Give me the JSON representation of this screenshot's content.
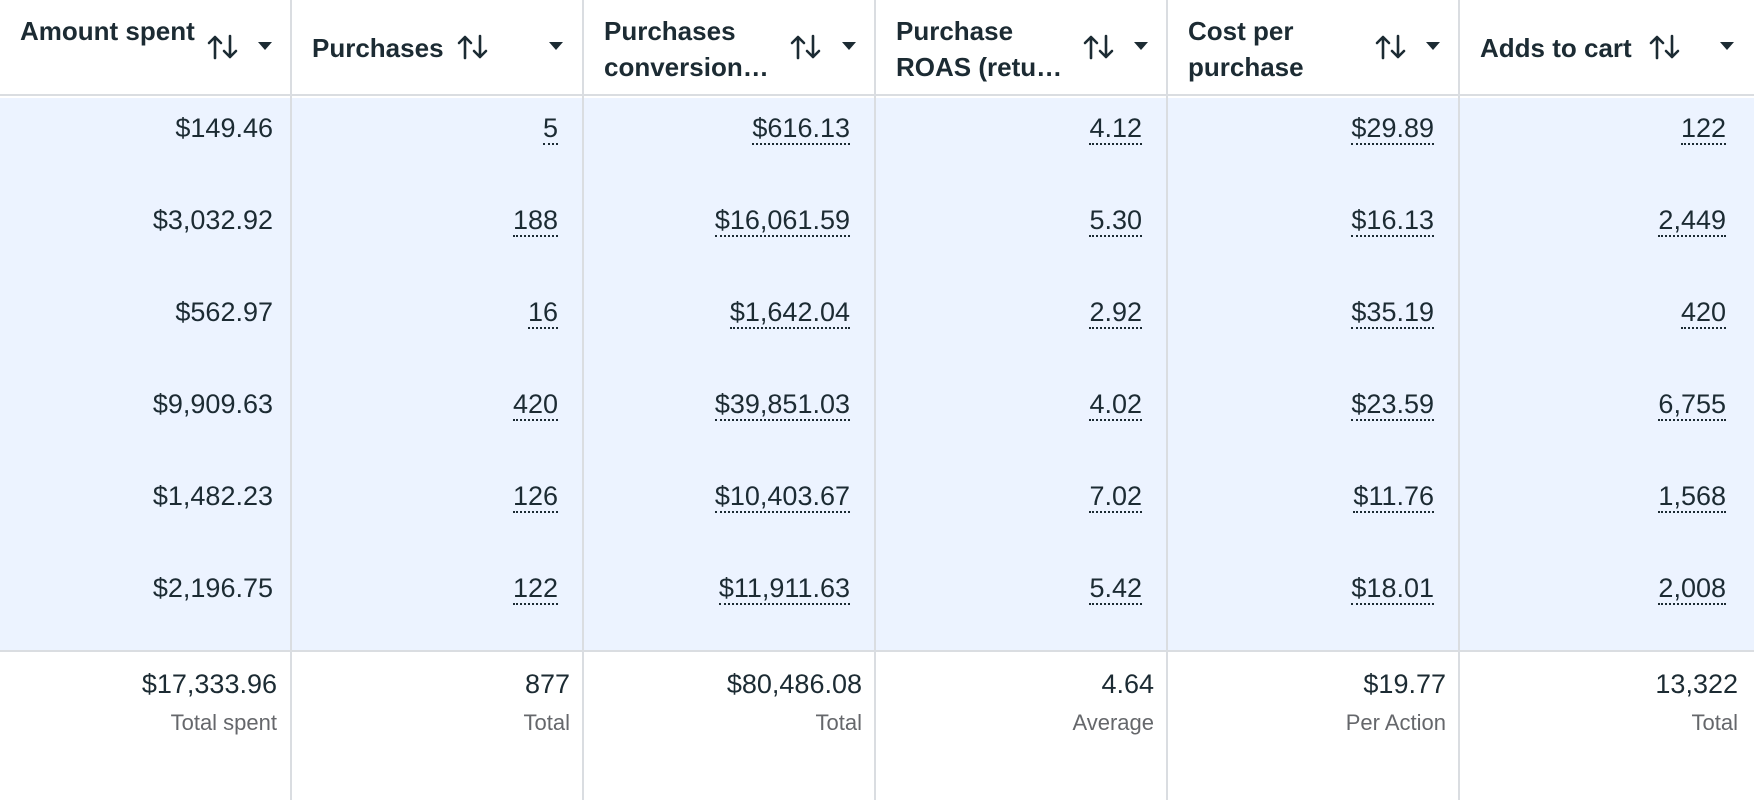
{
  "columns": [
    {
      "label": "Amount spent"
    },
    {
      "label": "Purchases"
    },
    {
      "label": "Purchases conversion…"
    },
    {
      "label": "Purchase ROAS (retu…"
    },
    {
      "label": "Cost per purchase"
    },
    {
      "label": "Adds to cart"
    }
  ],
  "rows": [
    [
      "$149.46",
      "5",
      "$616.13",
      "4.12",
      "$29.89",
      "122"
    ],
    [
      "$3,032.92",
      "188",
      "$16,061.59",
      "5.30",
      "$16.13",
      "2,449"
    ],
    [
      "$562.97",
      "16",
      "$1,642.04",
      "2.92",
      "$35.19",
      "420"
    ],
    [
      "$9,909.63",
      "420",
      "$39,851.03",
      "4.02",
      "$23.59",
      "6,755"
    ],
    [
      "$1,482.23",
      "126",
      "$10,403.67",
      "7.02",
      "$11.76",
      "1,568"
    ],
    [
      "$2,196.75",
      "122",
      "$11,911.63",
      "5.42",
      "$18.01",
      "2,008"
    ]
  ],
  "totals": [
    {
      "value": "$17,333.96",
      "label": "Total spent"
    },
    {
      "value": "877",
      "label": "Total"
    },
    {
      "value": "$80,486.08",
      "label": "Total"
    },
    {
      "value": "4.64",
      "label": "Average"
    },
    {
      "value": "$19.77",
      "label": "Per Action"
    },
    {
      "value": "13,322",
      "label": "Total"
    }
  ],
  "icons": {
    "sort": "sort-arrows-icon",
    "menu": "caret-down-icon"
  },
  "colors": {
    "row_highlight": "#ecf3ff",
    "text": "#1c2b33",
    "muted": "#65676b",
    "border": "#dadde1"
  }
}
